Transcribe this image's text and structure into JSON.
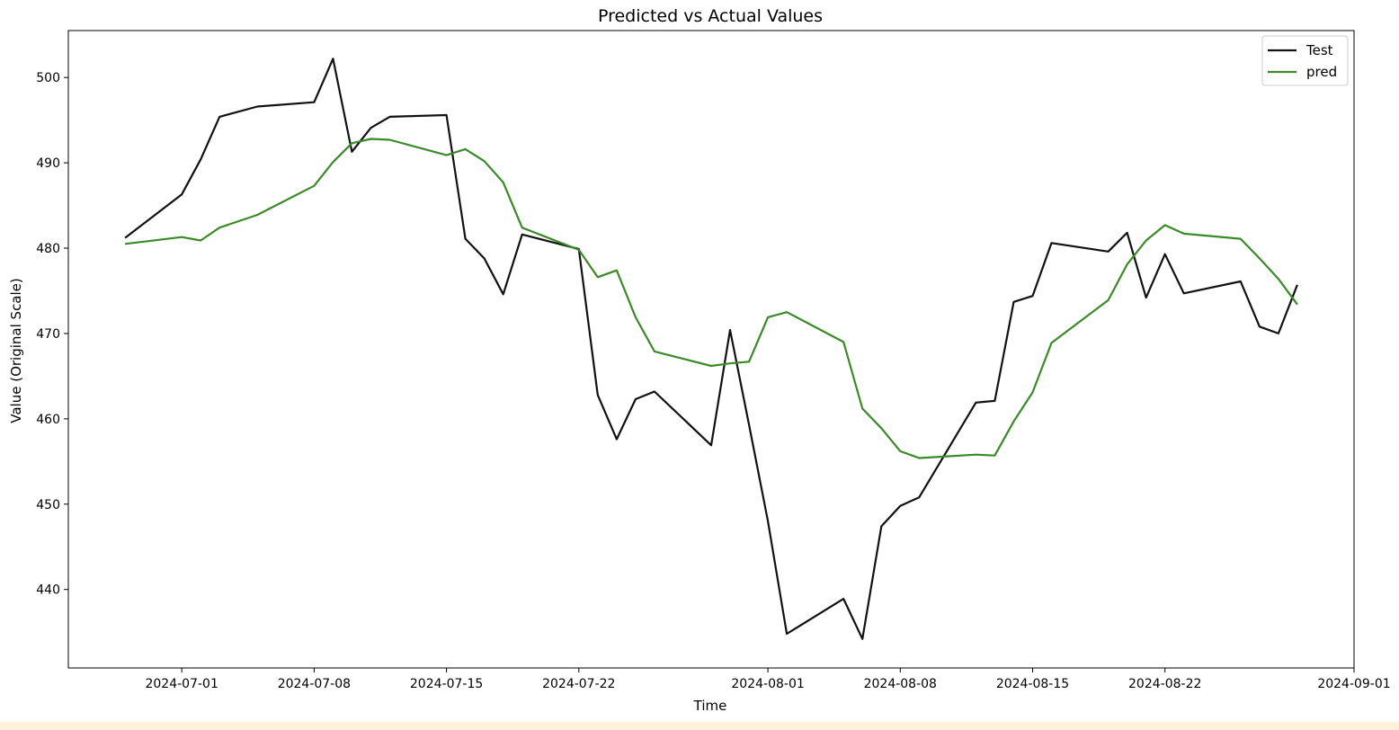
{
  "chart_data": {
    "type": "line",
    "title": "Predicted vs Actual Values",
    "xlabel": "Time",
    "ylabel": "Value (Original Scale)",
    "x_ticks": [
      "2024-07-01",
      "2024-07-08",
      "2024-07-15",
      "2024-07-22",
      "2024-08-01",
      "2024-08-08",
      "2024-08-15",
      "2024-08-22",
      "2024-09-01"
    ],
    "y_ticks": [
      440,
      450,
      460,
      470,
      480,
      490,
      500
    ],
    "xlim": [
      "2024-06-25",
      "2024-09-01"
    ],
    "ylim": [
      430.8,
      505.5
    ],
    "grid": false,
    "legend": "top-right",
    "series": [
      {
        "name": "Test",
        "color": "#111111",
        "points": [
          [
            "2024-06-28",
            481.2
          ],
          [
            "2024-07-01",
            486.3
          ],
          [
            "2024-07-02",
            490.4
          ],
          [
            "2024-07-03",
            495.4
          ],
          [
            "2024-07-05",
            496.6
          ],
          [
            "2024-07-08",
            497.1
          ],
          [
            "2024-07-09",
            502.2
          ],
          [
            "2024-07-10",
            491.3
          ],
          [
            "2024-07-11",
            494.1
          ],
          [
            "2024-07-12",
            495.4
          ],
          [
            "2024-07-15",
            495.6
          ],
          [
            "2024-07-16",
            481.1
          ],
          [
            "2024-07-17",
            478.8
          ],
          [
            "2024-07-18",
            474.6
          ],
          [
            "2024-07-19",
            481.6
          ],
          [
            "2024-07-22",
            479.9
          ],
          [
            "2024-07-23",
            462.8
          ],
          [
            "2024-07-24",
            457.6
          ],
          [
            "2024-07-25",
            462.3
          ],
          [
            "2024-07-26",
            463.2
          ],
          [
            "2024-07-29",
            456.9
          ],
          [
            "2024-07-30",
            470.4
          ],
          [
            "2024-07-31",
            459.3
          ],
          [
            "2024-08-01",
            448.0
          ],
          [
            "2024-08-02",
            434.8
          ],
          [
            "2024-08-05",
            438.9
          ],
          [
            "2024-08-06",
            434.2
          ],
          [
            "2024-08-07",
            447.4
          ],
          [
            "2024-08-08",
            449.8
          ],
          [
            "2024-08-09",
            450.8
          ],
          [
            "2024-08-12",
            461.9
          ],
          [
            "2024-08-13",
            462.1
          ],
          [
            "2024-08-14",
            473.7
          ],
          [
            "2024-08-15",
            474.4
          ],
          [
            "2024-08-16",
            480.6
          ],
          [
            "2024-08-19",
            479.6
          ],
          [
            "2024-08-20",
            481.8
          ],
          [
            "2024-08-21",
            474.2
          ],
          [
            "2024-08-22",
            479.3
          ],
          [
            "2024-08-23",
            474.7
          ],
          [
            "2024-08-26",
            476.1
          ],
          [
            "2024-08-27",
            470.8
          ],
          [
            "2024-08-28",
            470.0
          ],
          [
            "2024-08-29",
            475.7
          ]
        ]
      },
      {
        "name": "pred",
        "color": "#3a8a28",
        "points": [
          [
            "2024-06-28",
            480.5
          ],
          [
            "2024-07-01",
            481.3
          ],
          [
            "2024-07-02",
            480.9
          ],
          [
            "2024-07-03",
            482.4
          ],
          [
            "2024-07-05",
            483.9
          ],
          [
            "2024-07-08",
            487.3
          ],
          [
            "2024-07-09",
            490.1
          ],
          [
            "2024-07-10",
            492.3
          ],
          [
            "2024-07-11",
            492.8
          ],
          [
            "2024-07-12",
            492.7
          ],
          [
            "2024-07-15",
            490.9
          ],
          [
            "2024-07-16",
            491.6
          ],
          [
            "2024-07-17",
            490.2
          ],
          [
            "2024-07-18",
            487.7
          ],
          [
            "2024-07-19",
            482.4
          ],
          [
            "2024-07-22",
            479.8
          ],
          [
            "2024-07-23",
            476.6
          ],
          [
            "2024-07-24",
            477.4
          ],
          [
            "2024-07-25",
            471.9
          ],
          [
            "2024-07-26",
            467.9
          ],
          [
            "2024-07-29",
            466.2
          ],
          [
            "2024-07-30",
            466.5
          ],
          [
            "2024-07-31",
            466.7
          ],
          [
            "2024-08-01",
            471.9
          ],
          [
            "2024-08-02",
            472.5
          ],
          [
            "2024-08-05",
            469.0
          ],
          [
            "2024-08-06",
            461.2
          ],
          [
            "2024-08-07",
            458.9
          ],
          [
            "2024-08-08",
            456.2
          ],
          [
            "2024-08-09",
            455.4
          ],
          [
            "2024-08-12",
            455.8
          ],
          [
            "2024-08-13",
            455.7
          ],
          [
            "2024-08-14",
            459.7
          ],
          [
            "2024-08-15",
            463.1
          ],
          [
            "2024-08-16",
            468.9
          ],
          [
            "2024-08-19",
            473.9
          ],
          [
            "2024-08-20",
            478.1
          ],
          [
            "2024-08-21",
            480.9
          ],
          [
            "2024-08-22",
            482.7
          ],
          [
            "2024-08-23",
            481.7
          ],
          [
            "2024-08-26",
            481.1
          ],
          [
            "2024-08-27",
            478.8
          ],
          [
            "2024-08-28",
            476.4
          ],
          [
            "2024-08-29",
            473.4
          ]
        ]
      }
    ]
  }
}
